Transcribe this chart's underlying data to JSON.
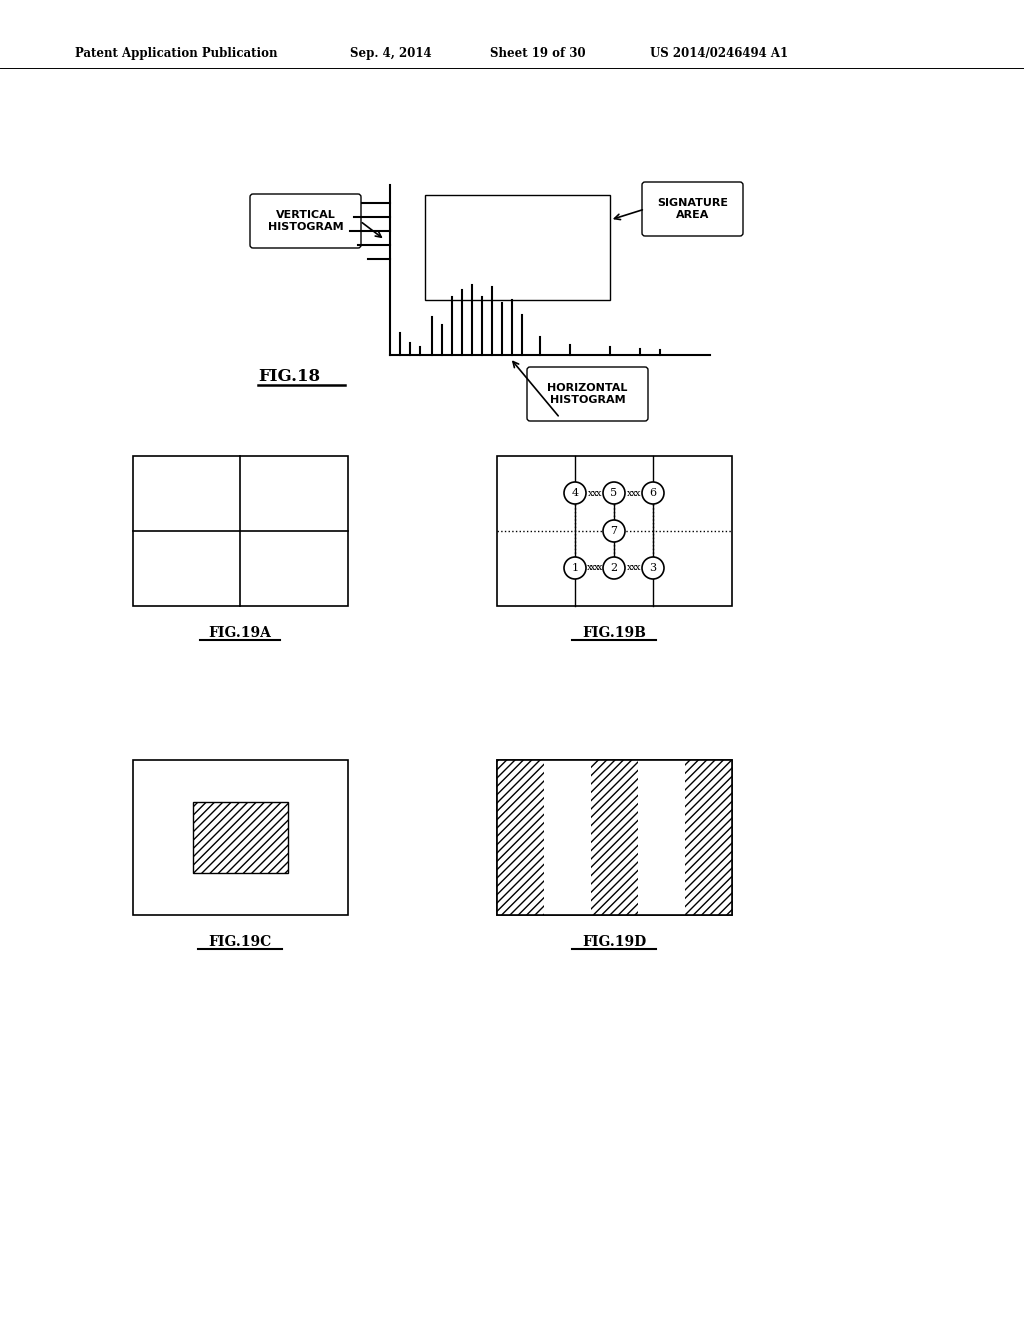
{
  "bg_color": "#ffffff",
  "header_text": "Patent Application Publication",
  "header_date": "Sep. 4, 2014",
  "header_sheet": "Sheet 19 of 30",
  "header_patent": "US 2014/0246494 A1",
  "fig18_label": "FIG.18",
  "fig19a_label": "FIG.19A",
  "fig19b_label": "FIG.19B",
  "fig19c_label": "FIG.19C",
  "fig19d_label": "FIG.19D",
  "label_vertical_histogram": "VERTICAL\nHISTOGRAM",
  "label_signature_area": "SIGNATURE\nAREA",
  "label_horizontal_histogram": "HORIZONTAL\nHISTOGRAM"
}
